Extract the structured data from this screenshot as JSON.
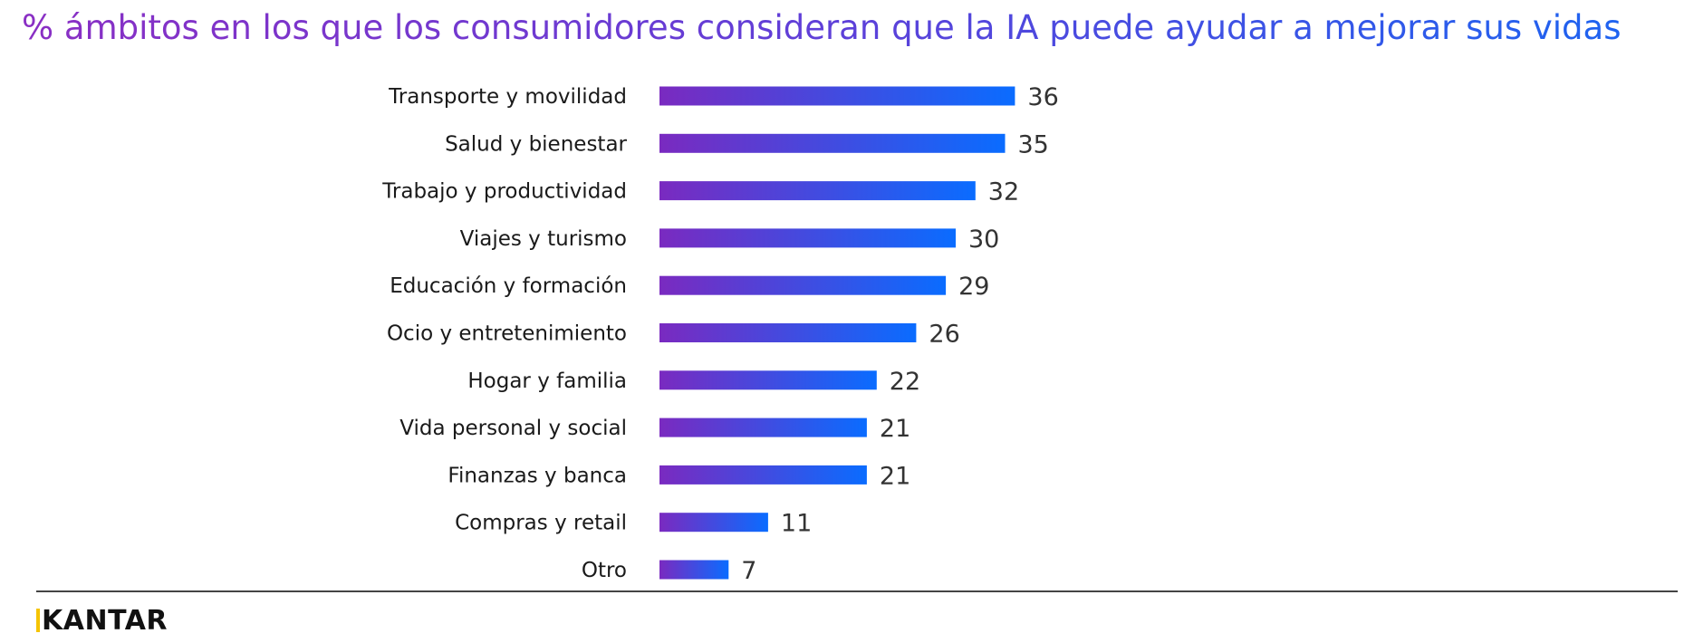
{
  "title": "% ámbitos en los que los consumidores consideran que la IA puede ayudar a mejorar sus vidas",
  "brand": "KANTAR",
  "colors": {
    "bar_start": "#7a2ac0",
    "bar_end": "#0a6cff",
    "text": "#1a1a1a",
    "value_text": "#333333"
  },
  "chart_data": {
    "type": "bar",
    "orientation": "horizontal",
    "title": "% ámbitos en los que los consumidores consideran que la IA puede ayudar a mejorar sus vidas",
    "xlabel": "",
    "ylabel": "",
    "xlim": [
      0,
      36
    ],
    "grid": false,
    "legend": "none",
    "categories": [
      "Transporte y movilidad",
      "Salud y bienestar",
      "Trabajo y productividad",
      "Viajes y turismo",
      "Educación y formación",
      "Ocio y entretenimiento",
      "Hogar y familia",
      "Vida personal y social",
      "Finanzas y banca",
      "Compras y retail",
      "Otro"
    ],
    "values": [
      36,
      35,
      32,
      30,
      29,
      26,
      22,
      21,
      21,
      11,
      7
    ],
    "data_labels": [
      "36",
      "35",
      "32",
      "30",
      "29",
      "26",
      "22",
      "21",
      "21",
      "11",
      "7"
    ]
  }
}
